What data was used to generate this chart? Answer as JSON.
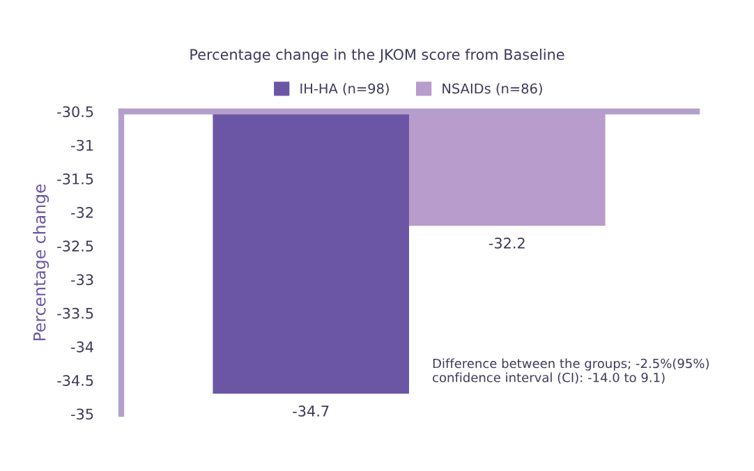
{
  "chart_data": {
    "type": "bar",
    "title": "Percentage change in the JKOM score from Baseline",
    "ylabel": "Percentage change",
    "categories": [
      null
    ],
    "series": [
      {
        "name": "IH-HA (n=98)",
        "color": "#6b55a5",
        "values": [
          -34.7
        ]
      },
      {
        "name": "NSAIDs (n=86)",
        "color": "#b89ccb",
        "values": [
          -32.2
        ]
      }
    ],
    "ylim": [
      -35,
      -30.5
    ],
    "yticks": [
      -35,
      -34.5,
      -34,
      -33.5,
      -33,
      -32.5,
      -32,
      -31.5,
      -31,
      -30.5
    ],
    "grid": false,
    "legend": "top",
    "data_labels": true,
    "annotations": [
      "Difference between the groups; -2.5%(95%)\nconfidence interval (CI): -14.0 to 9.1)"
    ]
  }
}
